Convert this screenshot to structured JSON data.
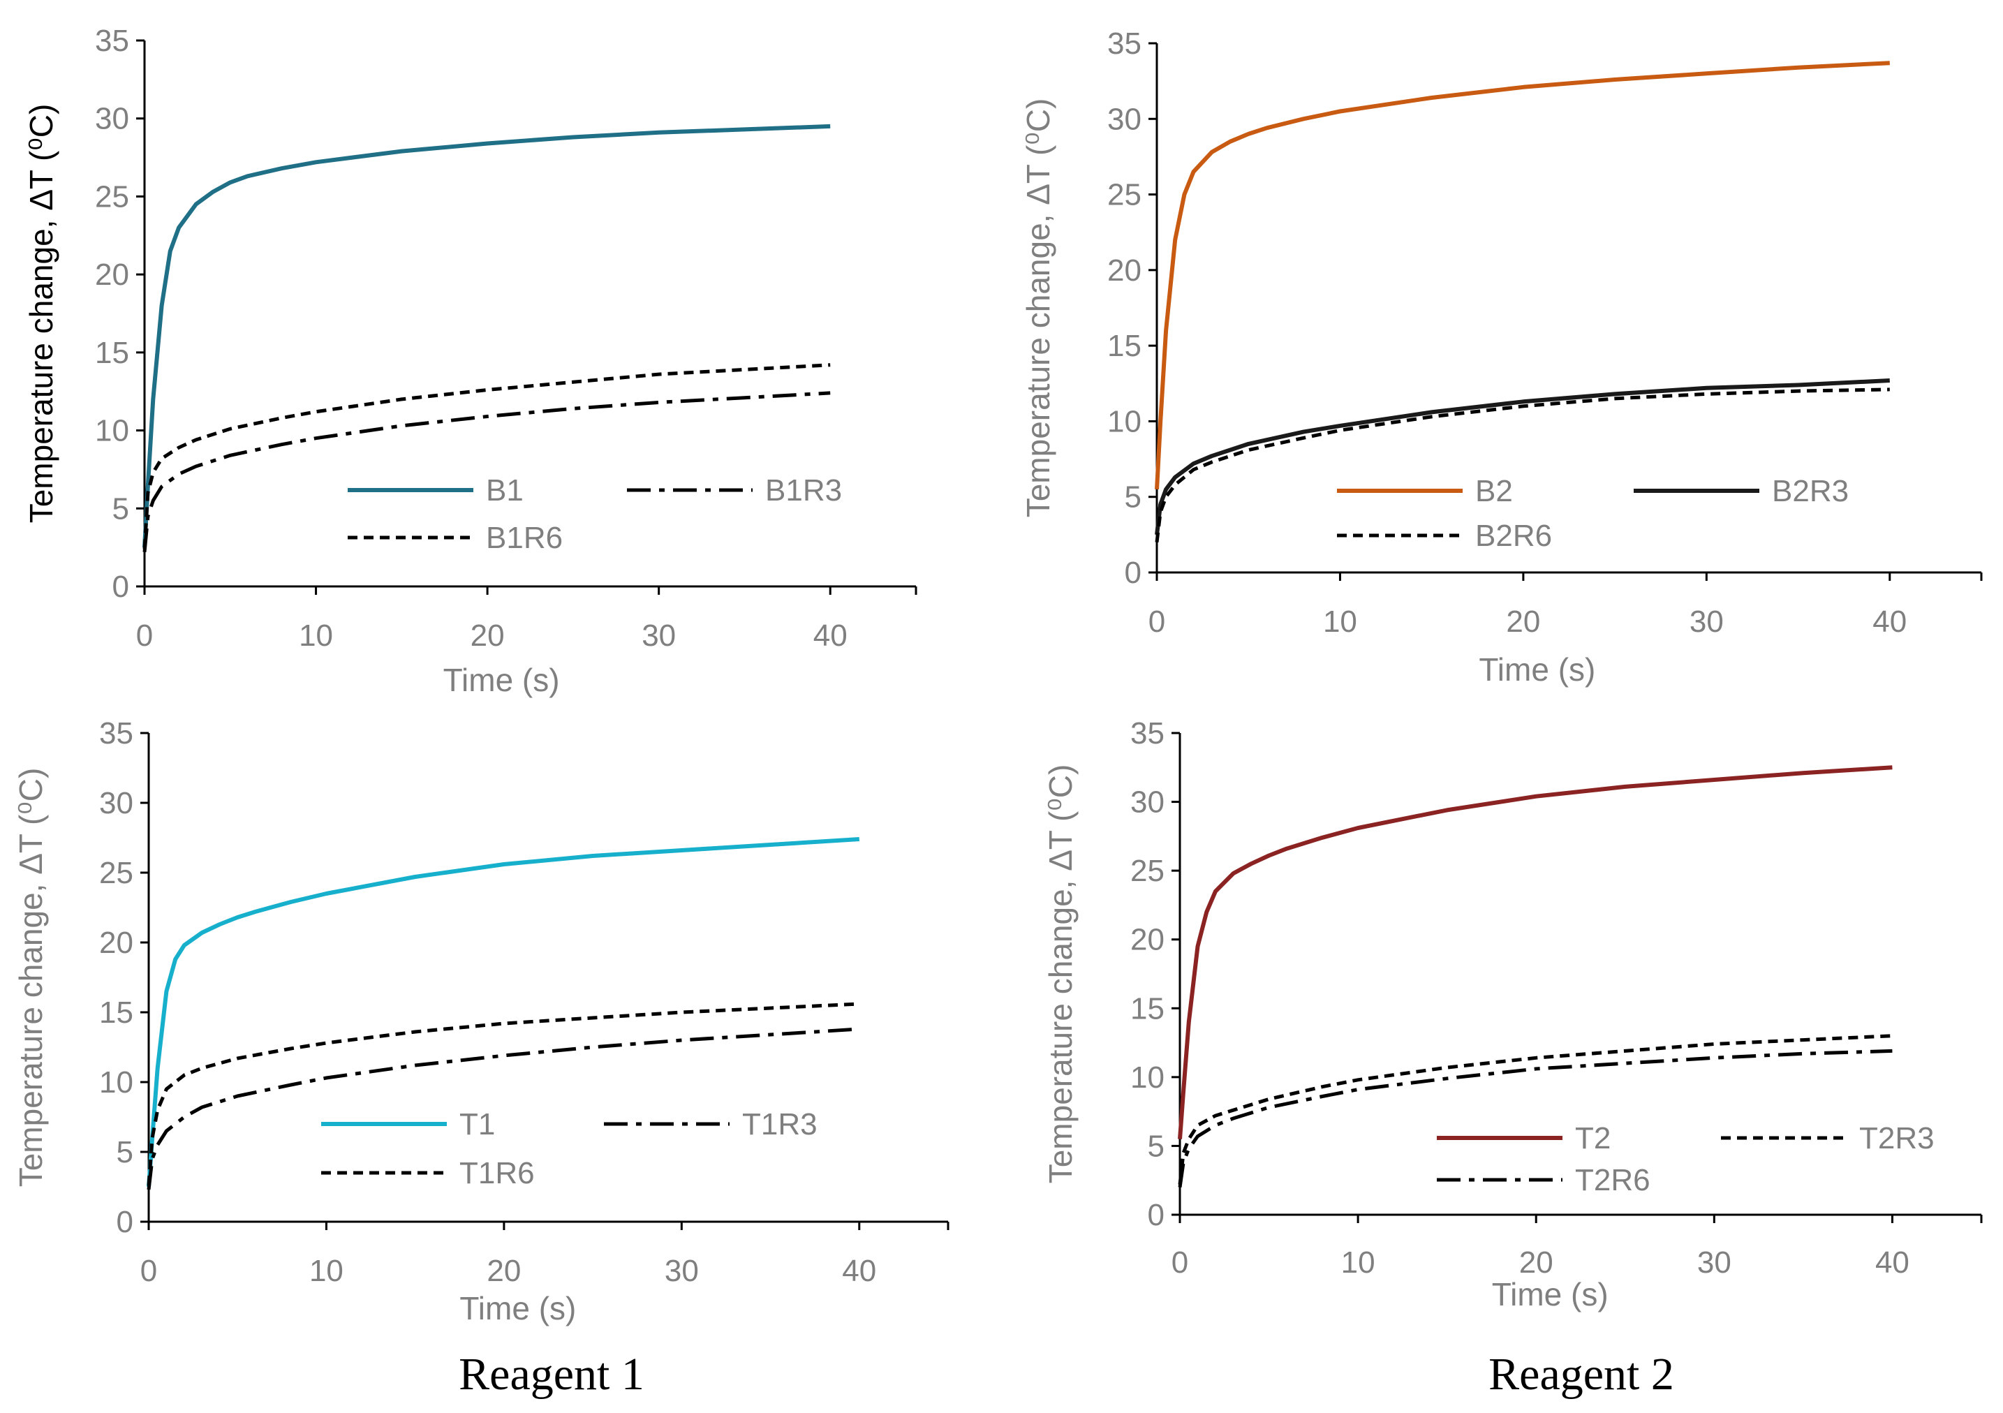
{
  "chart_data": [
    {
      "type": "line",
      "panel": "top-left",
      "xlabel": "Time (s)",
      "ylabel": "Temperature change, ΔT  (⁰C)",
      "xlim": [
        0,
        45
      ],
      "ylim": [
        0,
        35
      ],
      "xticks": [
        0,
        10,
        20,
        30,
        40
      ],
      "yticks": [
        0,
        5,
        10,
        15,
        20,
        25,
        30,
        35
      ],
      "legend_position": "lower-right",
      "series": [
        {
          "name": "B1",
          "color": "#1f6f86",
          "style": "solid",
          "x": [
            0,
            0.2,
            0.5,
            1,
            1.5,
            2,
            3,
            4,
            5,
            6,
            8,
            10,
            15,
            20,
            25,
            30,
            35,
            40
          ],
          "y": [
            2.5,
            6.5,
            12,
            18,
            21.5,
            23,
            24.5,
            25.3,
            25.9,
            26.3,
            26.8,
            27.2,
            27.9,
            28.4,
            28.8,
            29.1,
            29.3,
            29.5
          ]
        },
        {
          "name": "B1R3",
          "color": "#000000",
          "style": "dashdot",
          "x": [
            0,
            0.2,
            0.5,
            1,
            2,
            3,
            5,
            8,
            10,
            15,
            20,
            25,
            30,
            35,
            40
          ],
          "y": [
            2.2,
            4.5,
            5.5,
            6.4,
            7.2,
            7.7,
            8.4,
            9.1,
            9.5,
            10.3,
            10.9,
            11.4,
            11.8,
            12.1,
            12.4
          ]
        },
        {
          "name": "B1R6",
          "color": "#000000",
          "style": "dashed",
          "x": [
            0,
            0.2,
            0.5,
            1,
            2,
            3,
            5,
            8,
            10,
            15,
            20,
            25,
            30,
            35,
            40
          ],
          "y": [
            2.4,
            6.0,
            7.3,
            8.2,
            8.9,
            9.4,
            10.1,
            10.8,
            11.2,
            12.0,
            12.6,
            13.1,
            13.6,
            13.9,
            14.2
          ]
        }
      ]
    },
    {
      "type": "line",
      "panel": "top-right",
      "xlabel": "Time (s)",
      "ylabel": "Temperature change, ΔT  (⁰C)",
      "xlim": [
        0,
        45
      ],
      "ylim": [
        0,
        35
      ],
      "xticks": [
        0,
        10,
        20,
        30,
        40
      ],
      "yticks": [
        0,
        5,
        10,
        15,
        20,
        25,
        30,
        35
      ],
      "legend_position": "lower-right",
      "series": [
        {
          "name": "B2",
          "color": "#c85a11",
          "style": "solid",
          "x": [
            0,
            0.2,
            0.5,
            1,
            1.5,
            2,
            3,
            4,
            5,
            6,
            8,
            10,
            15,
            20,
            25,
            30,
            35,
            40
          ],
          "y": [
            5.5,
            10,
            16,
            22,
            25,
            26.5,
            27.8,
            28.5,
            29.0,
            29.4,
            30.0,
            30.5,
            31.4,
            32.1,
            32.6,
            33.0,
            33.4,
            33.7
          ]
        },
        {
          "name": "B2R3",
          "color": "#1a1a1a",
          "style": "solid",
          "x": [
            0,
            0.2,
            0.5,
            1,
            2,
            3,
            5,
            8,
            10,
            15,
            20,
            25,
            30,
            35,
            40
          ],
          "y": [
            2.5,
            4.5,
            5.5,
            6.3,
            7.2,
            7.7,
            8.5,
            9.3,
            9.7,
            10.6,
            11.3,
            11.8,
            12.2,
            12.4,
            12.7
          ]
        },
        {
          "name": "B2R6",
          "color": "#000000",
          "style": "dashed",
          "x": [
            0,
            0.2,
            0.5,
            1,
            2,
            3,
            5,
            8,
            10,
            15,
            20,
            25,
            30,
            35,
            40
          ],
          "y": [
            2.0,
            4.0,
            5.0,
            5.8,
            6.8,
            7.3,
            8.1,
            8.9,
            9.4,
            10.3,
            11.0,
            11.5,
            11.8,
            12.0,
            12.1
          ]
        }
      ]
    },
    {
      "type": "line",
      "panel": "bottom-left",
      "xlabel": "Time (s)",
      "ylabel": "Temperature change, ΔT  (⁰C)",
      "xlim": [
        0,
        45
      ],
      "ylim": [
        0,
        35
      ],
      "xticks": [
        0,
        10,
        20,
        30,
        40
      ],
      "yticks": [
        0,
        5,
        10,
        15,
        20,
        25,
        30,
        35
      ],
      "legend_position": "lower-right",
      "series": [
        {
          "name": "T1",
          "color": "#17b0cc",
          "style": "solid",
          "x": [
            0,
            0.2,
            0.5,
            1,
            1.5,
            2,
            3,
            4,
            5,
            6,
            8,
            10,
            15,
            20,
            25,
            30,
            35,
            40
          ],
          "y": [
            2.5,
            6,
            11,
            16.5,
            18.8,
            19.8,
            20.7,
            21.3,
            21.8,
            22.2,
            22.9,
            23.5,
            24.7,
            25.6,
            26.2,
            26.6,
            27.0,
            27.4
          ]
        },
        {
          "name": "T1R3",
          "color": "#000000",
          "style": "dashdot",
          "x": [
            0,
            0.2,
            0.5,
            1,
            2,
            3,
            5,
            8,
            10,
            15,
            20,
            25,
            30,
            35,
            40
          ],
          "y": [
            2.3,
            4.5,
            5.5,
            6.5,
            7.5,
            8.2,
            9.0,
            9.8,
            10.3,
            11.2,
            11.9,
            12.5,
            13.0,
            13.4,
            13.8
          ]
        },
        {
          "name": "T1R6",
          "color": "#000000",
          "style": "dashed",
          "x": [
            0,
            0.2,
            0.5,
            1,
            2,
            3,
            5,
            8,
            10,
            15,
            20,
            25,
            30,
            35,
            40
          ],
          "y": [
            2.6,
            6.0,
            8.0,
            9.5,
            10.5,
            11.0,
            11.7,
            12.4,
            12.8,
            13.6,
            14.2,
            14.6,
            15.0,
            15.3,
            15.6
          ]
        }
      ]
    },
    {
      "type": "line",
      "panel": "bottom-right",
      "xlabel": "Time (s)",
      "ylabel": "Temperature change, ΔT  (⁰C)",
      "xlim": [
        0,
        45
      ],
      "ylim": [
        0,
        35
      ],
      "xticks": [
        0,
        10,
        20,
        30,
        40
      ],
      "yticks": [
        0,
        5,
        10,
        15,
        20,
        25,
        30,
        35
      ],
      "legend_position": "lower-right",
      "series": [
        {
          "name": "T2",
          "color": "#8b2323",
          "style": "solid",
          "x": [
            0,
            0.2,
            0.5,
            1,
            1.5,
            2,
            3,
            4,
            5,
            6,
            8,
            10,
            15,
            20,
            25,
            30,
            35,
            40
          ],
          "y": [
            5.5,
            9,
            14,
            19.5,
            22,
            23.5,
            24.8,
            25.5,
            26.1,
            26.6,
            27.4,
            28.1,
            29.4,
            30.4,
            31.1,
            31.6,
            32.1,
            32.5
          ]
        },
        {
          "name": "T2R3",
          "color": "#000000",
          "style": "dashed",
          "x": [
            0,
            0.2,
            0.5,
            1,
            2,
            3,
            5,
            8,
            10,
            15,
            20,
            25,
            30,
            35,
            40
          ],
          "y": [
            2.2,
            4.5,
            5.5,
            6.5,
            7.2,
            7.6,
            8.4,
            9.3,
            9.8,
            10.7,
            11.4,
            11.9,
            12.4,
            12.7,
            13.0
          ]
        },
        {
          "name": "T2R6",
          "color": "#000000",
          "style": "dashdot",
          "x": [
            0,
            0.2,
            0.5,
            1,
            2,
            3,
            5,
            8,
            10,
            15,
            20,
            25,
            30,
            35,
            40
          ],
          "y": [
            2.0,
            3.8,
            4.8,
            5.7,
            6.5,
            7.0,
            7.8,
            8.6,
            9.1,
            9.9,
            10.6,
            11.0,
            11.4,
            11.7,
            11.9
          ]
        }
      ]
    }
  ],
  "captions": [
    "Reagent 1",
    "Reagent 2"
  ]
}
